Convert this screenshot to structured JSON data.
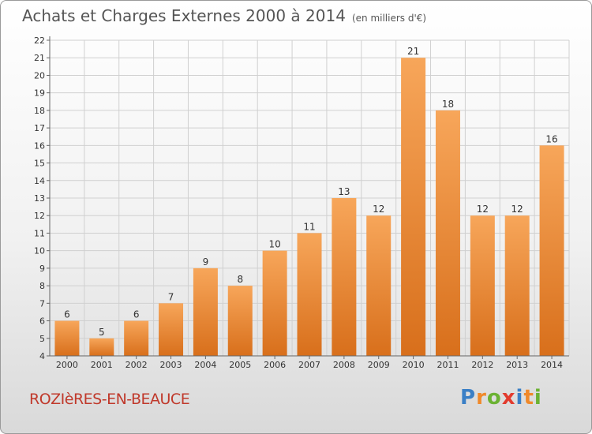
{
  "header": {
    "title": "Achats et Charges Externes 2000 à 2014",
    "subtitle": "(en milliers d'€)"
  },
  "footer": {
    "commune": "ROZIèRES-EN-BEAUCE",
    "brand": {
      "letters": [
        "P",
        "r",
        "o",
        "x",
        "i",
        "t",
        "i"
      ]
    }
  },
  "colors": {
    "bar_top": "#f7a65a",
    "bar_bottom": "#d86f1b",
    "grid": "#d0d0d0",
    "commune": "#c0392b",
    "brand_letters": [
      "#3a7fc6",
      "#f0892a",
      "#6bb233",
      "#e23b2e",
      "#3a7fc6",
      "#f0892a",
      "#6bb233"
    ]
  },
  "chart_data": {
    "type": "bar",
    "title": "Achats et Charges Externes 2000 à 2014",
    "subtitle": "(en milliers d'€)",
    "categories": [
      "2000",
      "2001",
      "2002",
      "2003",
      "2004",
      "2005",
      "2006",
      "2007",
      "2008",
      "2009",
      "2010",
      "2011",
      "2012",
      "2013",
      "2014"
    ],
    "values": [
      6,
      5,
      6,
      7,
      9,
      8,
      10,
      11,
      13,
      12,
      21,
      18,
      12,
      12,
      16
    ],
    "ylim": [
      4,
      22
    ],
    "yticks": [
      4,
      5,
      6,
      7,
      8,
      9,
      10,
      11,
      12,
      13,
      14,
      15,
      16,
      17,
      18,
      19,
      20,
      21,
      22
    ],
    "grid": true,
    "data_labels": true
  }
}
